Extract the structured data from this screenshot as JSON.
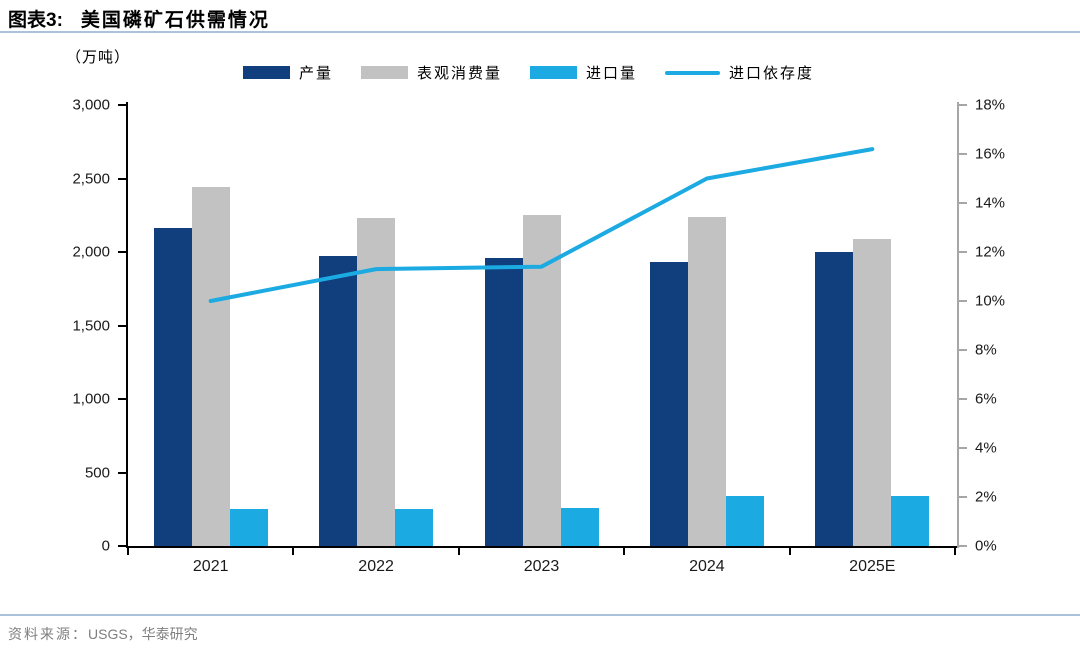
{
  "header": {
    "prefix": "图表3:",
    "title": "美国磷矿石供需情况"
  },
  "footer": {
    "source_label": "资料来源：",
    "source_text": "USGS，华泰研究"
  },
  "colors": {
    "navy_bar": "#113e7d",
    "gray_bar": "#c2c2c2",
    "cyan_bar": "#1baae2",
    "cyan_line": "#1baae2",
    "divider": "#a9c3da",
    "left_axis": "#000000",
    "right_axis": "#a6a6a6",
    "footer_text": "#7f7f7f"
  },
  "chart_data": {
    "type": "bar+line",
    "title": "美国磷矿石供需情况",
    "unit_label": "（万吨）",
    "categories": [
      "2021",
      "2022",
      "2023",
      "2024",
      "2025E"
    ],
    "bar_series": [
      {
        "key": "production",
        "name": "产量",
        "color": "#113e7d",
        "values": [
          2160,
          1975,
          1960,
          1930,
          2000
        ]
      },
      {
        "key": "apparent-consumption",
        "name": "表观消费量",
        "color": "#c2c2c2",
        "values": [
          2440,
          2230,
          2250,
          2240,
          2090
        ]
      },
      {
        "key": "imports",
        "name": "进口量",
        "color": "#1baae2",
        "values": [
          250,
          250,
          260,
          340,
          340
        ]
      }
    ],
    "line_series": [
      {
        "key": "import-dependency",
        "name": "进口依存度",
        "color": "#1baae2",
        "axis": "right",
        "values": [
          10.0,
          11.3,
          11.4,
          15.0,
          16.2
        ]
      }
    ],
    "left_axis": {
      "min": 0,
      "max": 3000,
      "step": 500,
      "tick_labels": [
        "0",
        "500",
        "1,000",
        "1,500",
        "2,000",
        "2,500",
        "3,000"
      ]
    },
    "right_axis": {
      "min": 0,
      "max": 18,
      "step": 2,
      "tick_labels": [
        "0%",
        "2%",
        "4%",
        "6%",
        "8%",
        "10%",
        "12%",
        "14%",
        "16%",
        "18%"
      ]
    },
    "legend_position": "top",
    "grid": false
  }
}
